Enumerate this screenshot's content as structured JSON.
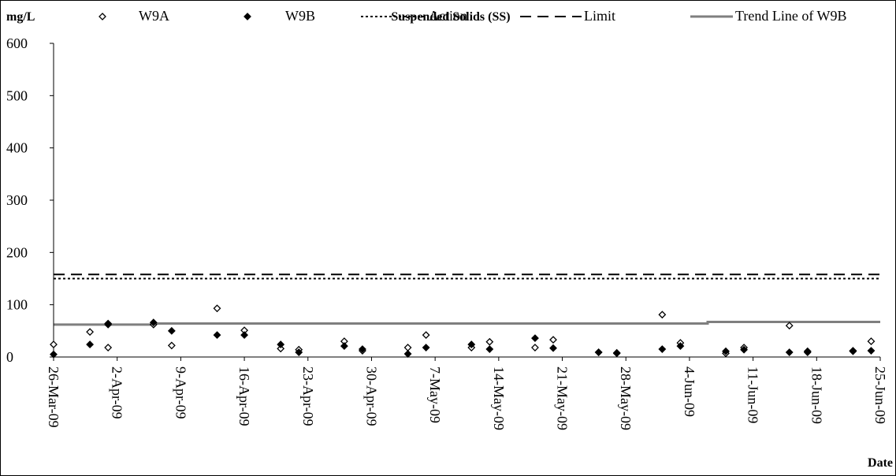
{
  "chart_data": {
    "type": "scatter",
    "title": "Suspended Solids (SS)",
    "ylabel": "mg/L",
    "xlabel": "Date",
    "ylim": [
      0,
      600
    ],
    "yticks": [
      0,
      100,
      200,
      300,
      400,
      500,
      600
    ],
    "xlim": [
      "2009-03-26",
      "2009-06-25"
    ],
    "xtick_labels": [
      "26-Mar-09",
      "2-Apr-09",
      "9-Apr-09",
      "16-Apr-09",
      "23-Apr-09",
      "30-Apr-09",
      "7-May-09",
      "14-May-09",
      "21-May-09",
      "28-May-09",
      "4-Jun-09",
      "11-Jun-09",
      "18-Jun-09",
      "25-Jun-09"
    ],
    "xtick_dates": [
      "2009-03-26",
      "2009-04-02",
      "2009-04-09",
      "2009-04-16",
      "2009-04-23",
      "2009-04-30",
      "2009-05-07",
      "2009-05-14",
      "2009-05-21",
      "2009-05-28",
      "2009-06-04",
      "2009-06-11",
      "2009-06-18",
      "2009-06-25"
    ],
    "grid": false,
    "legend_position": "top",
    "series": [
      {
        "name": "W9A",
        "kind": "scatter",
        "marker": "open-diamond",
        "color": "#000000",
        "points": [
          {
            "x": "2009-03-26",
            "y": 24
          },
          {
            "x": "2009-03-30",
            "y": 48
          },
          {
            "x": "2009-04-01",
            "y": 64
          },
          {
            "x": "2009-04-01",
            "y": 18
          },
          {
            "x": "2009-04-06",
            "y": 62
          },
          {
            "x": "2009-04-08",
            "y": 22
          },
          {
            "x": "2009-04-13",
            "y": 93
          },
          {
            "x": "2009-04-16",
            "y": 51
          },
          {
            "x": "2009-04-20",
            "y": 16
          },
          {
            "x": "2009-04-22",
            "y": 14
          },
          {
            "x": "2009-04-27",
            "y": 30
          },
          {
            "x": "2009-04-29",
            "y": 12
          },
          {
            "x": "2009-05-04",
            "y": 18
          },
          {
            "x": "2009-05-06",
            "y": 42
          },
          {
            "x": "2009-05-11",
            "y": 18
          },
          {
            "x": "2009-05-13",
            "y": 29
          },
          {
            "x": "2009-05-18",
            "y": 18
          },
          {
            "x": "2009-05-20",
            "y": 33
          },
          {
            "x": "2009-05-25",
            "y": 9
          },
          {
            "x": "2009-05-27",
            "y": 7
          },
          {
            "x": "2009-06-01",
            "y": 81
          },
          {
            "x": "2009-06-03",
            "y": 27
          },
          {
            "x": "2009-06-08",
            "y": 7
          },
          {
            "x": "2009-06-10",
            "y": 18
          },
          {
            "x": "2009-06-15",
            "y": 60
          },
          {
            "x": "2009-06-17",
            "y": 9
          },
          {
            "x": "2009-06-22",
            "y": 11
          },
          {
            "x": "2009-06-24",
            "y": 30
          }
        ]
      },
      {
        "name": "W9B",
        "kind": "scatter",
        "marker": "filled-diamond",
        "color": "#000000",
        "points": [
          {
            "x": "2009-03-26",
            "y": 5
          },
          {
            "x": "2009-03-30",
            "y": 24
          },
          {
            "x": "2009-04-01",
            "y": 62
          },
          {
            "x": "2009-04-06",
            "y": 66
          },
          {
            "x": "2009-04-08",
            "y": 50
          },
          {
            "x": "2009-04-13",
            "y": 42
          },
          {
            "x": "2009-04-16",
            "y": 42
          },
          {
            "x": "2009-04-20",
            "y": 24
          },
          {
            "x": "2009-04-22",
            "y": 9
          },
          {
            "x": "2009-04-27",
            "y": 21
          },
          {
            "x": "2009-04-29",
            "y": 15
          },
          {
            "x": "2009-05-04",
            "y": 6
          },
          {
            "x": "2009-05-06",
            "y": 18
          },
          {
            "x": "2009-05-11",
            "y": 24
          },
          {
            "x": "2009-05-13",
            "y": 15
          },
          {
            "x": "2009-05-18",
            "y": 36
          },
          {
            "x": "2009-05-20",
            "y": 17
          },
          {
            "x": "2009-05-25",
            "y": 9
          },
          {
            "x": "2009-05-27",
            "y": 8
          },
          {
            "x": "2009-06-01",
            "y": 15
          },
          {
            "x": "2009-06-03",
            "y": 21
          },
          {
            "x": "2009-06-08",
            "y": 11
          },
          {
            "x": "2009-06-10",
            "y": 14
          },
          {
            "x": "2009-06-15",
            "y": 9
          },
          {
            "x": "2009-06-17",
            "y": 11
          },
          {
            "x": "2009-06-22",
            "y": 12
          },
          {
            "x": "2009-06-24",
            "y": 12
          }
        ]
      },
      {
        "name": "Action",
        "kind": "line",
        "style": "dotted",
        "color": "#000000",
        "points": [
          {
            "x": "2009-03-26",
            "y": 150
          },
          {
            "x": "2009-06-25",
            "y": 150
          }
        ]
      },
      {
        "name": "Limit",
        "kind": "line",
        "style": "dashed",
        "color": "#000000",
        "points": [
          {
            "x": "2009-03-26",
            "y": 158
          },
          {
            "x": "2009-06-25",
            "y": 158
          }
        ]
      },
      {
        "name": "Trend Line of W9B",
        "kind": "line",
        "style": "solid",
        "color": "#7f7f7f",
        "points": [
          {
            "x": "2009-03-26",
            "y": 62
          },
          {
            "x": "2009-04-06",
            "y": 62
          },
          {
            "x": "2009-04-06",
            "y": 64
          },
          {
            "x": "2009-06-06",
            "y": 64
          },
          {
            "x": "2009-06-06",
            "y": 67
          },
          {
            "x": "2009-06-25",
            "y": 67
          }
        ]
      }
    ]
  }
}
